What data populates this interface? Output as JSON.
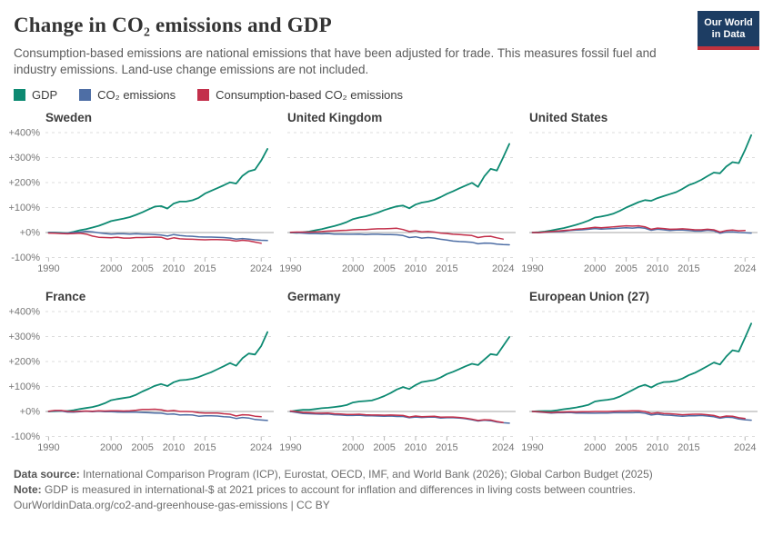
{
  "header": {
    "title": "Change in CO₂ emissions and GDP",
    "subtitle": "Consumption-based emissions are national emissions that have been adjusted for trade. This measures fossil fuel and industry emissions. Land-use change emissions are not included.",
    "logo": {
      "line1": "Our World",
      "line2": "in Data"
    }
  },
  "legend": [
    {
      "label": "GDP",
      "color": "#0d8a72"
    },
    {
      "label": "CO₂ emissions",
      "color": "#4e6ea5"
    },
    {
      "label": "Consumption-based CO₂ emissions",
      "color": "#c3304b"
    }
  ],
  "footer": {
    "data_source_label": "Data source:",
    "data_source_text": " International Comparison Program (ICP), Eurostat, OECD, IMF, and World Bank (2026); Global Carbon Budget (2025)",
    "note_label": "Note:",
    "note_text": " GDP is measured in international-$ at 2021 prices to account for inflation and differences in living costs between countries.",
    "license_line": "OurWorldinData.org/co2-and-greenhouse-gas-emissions | CC BY"
  },
  "chart_data": {
    "type": "line",
    "x": [
      1990,
      1991,
      1992,
      1993,
      1994,
      1995,
      1996,
      1997,
      1998,
      1999,
      2000,
      2001,
      2002,
      2003,
      2004,
      2005,
      2006,
      2007,
      2008,
      2009,
      2010,
      2011,
      2012,
      2013,
      2014,
      2015,
      2016,
      2017,
      2018,
      2019,
      2020,
      2021,
      2022,
      2023,
      2024,
      2025
    ],
    "xticks": [
      1990,
      2000,
      2005,
      2010,
      2015,
      2024
    ],
    "ylim": [
      -100,
      400
    ],
    "yticks": [
      400,
      300,
      200,
      100,
      0,
      -100
    ],
    "ytick_labels": [
      "+400%",
      "+300%",
      "+200%",
      "+100%",
      "+0%",
      "-100%"
    ],
    "grid": true,
    "legend_position": "top",
    "ylabel": "",
    "xlabel": "",
    "facets": [
      {
        "title": "Sweden",
        "series": [
          {
            "name": "GDP",
            "values": [
              0,
              0,
              -1,
              -2,
              3,
              9,
              14,
              20,
              27,
              36,
              46,
              51,
              56,
              62,
              71,
              81,
              93,
              104,
              106,
              96,
              116,
              124,
              124,
              129,
              139,
              156,
              167,
              178,
              189,
              201,
              196,
              227,
              245,
              252,
              288,
              335
            ]
          },
          {
            "name": "CO₂ emissions",
            "values": [
              0,
              -1,
              -2,
              -2,
              0,
              2,
              5,
              3,
              -1,
              -4,
              -6,
              -5,
              -5,
              -6,
              -5,
              -6,
              -7,
              -8,
              -10,
              -14,
              -8,
              -12,
              -14,
              -15,
              -17,
              -18,
              -18,
              -19,
              -20,
              -22,
              -26,
              -24,
              -26,
              -29,
              -31,
              -32
            ]
          },
          {
            "name": "Consumption-based CO₂ emissions",
            "values": [
              -2,
              -3,
              -4,
              -5,
              -4,
              -3,
              -6,
              -14,
              -19,
              -20,
              -21,
              -19,
              -22,
              -22,
              -20,
              -20,
              -19,
              -18,
              -19,
              -27,
              -21,
              -25,
              -26,
              -27,
              -28,
              -29,
              -28,
              -28,
              -29,
              -30,
              -34,
              -31,
              -33,
              -38,
              -43,
              null
            ]
          }
        ]
      },
      {
        "title": "United Kingdom",
        "series": [
          {
            "name": "GDP",
            "values": [
              0,
              -1,
              1,
              4,
              9,
              14,
              20,
              26,
              33,
              42,
              54,
              60,
              65,
              72,
              80,
              90,
              98,
              105,
              108,
              97,
              112,
              120,
              124,
              131,
              142,
              155,
              165,
              177,
              188,
              199,
              183,
              225,
              255,
              248,
              300,
              355
            ]
          },
          {
            "name": "CO₂ emissions",
            "values": [
              0,
              -1,
              -2,
              -4,
              -4,
              -5,
              -4,
              -6,
              -6,
              -7,
              -7,
              -6,
              -8,
              -7,
              -7,
              -8,
              -8,
              -9,
              -12,
              -20,
              -17,
              -22,
              -20,
              -22,
              -27,
              -30,
              -34,
              -36,
              -37,
              -39,
              -45,
              -42,
              -43,
              -46,
              -48,
              -49
            ]
          },
          {
            "name": "Consumption-based CO₂ emissions",
            "values": [
              1,
              2,
              2,
              2,
              3,
              4,
              6,
              7,
              8,
              9,
              11,
              12,
              12,
              14,
              15,
              15,
              16,
              17,
              12,
              4,
              7,
              3,
              4,
              2,
              -2,
              -4,
              -7,
              -8,
              -10,
              -12,
              -20,
              -16,
              -15,
              -21,
              -26,
              null
            ]
          }
        ]
      },
      {
        "title": "United States",
        "series": [
          {
            "name": "GDP",
            "values": [
              0,
              1,
              4,
              8,
              13,
              18,
              24,
              31,
              39,
              48,
              60,
              64,
              69,
              76,
              87,
              100,
              111,
              122,
              130,
              127,
              138,
              146,
              154,
              162,
              175,
              190,
              199,
              211,
              226,
              240,
              237,
              264,
              282,
              278,
              330,
              390
            ]
          },
          {
            "name": "CO₂ emissions",
            "values": [
              0,
              -1,
              1,
              3,
              4,
              5,
              8,
              10,
              11,
              13,
              16,
              14,
              15,
              16,
              18,
              19,
              18,
              20,
              17,
              9,
              13,
              11,
              8,
              10,
              10,
              8,
              6,
              6,
              9,
              7,
              -3,
              2,
              3,
              0,
              -1,
              -2
            ]
          },
          {
            "name": "Consumption-based CO₂ emissions",
            "values": [
              0,
              0,
              2,
              4,
              6,
              8,
              10,
              13,
              15,
              18,
              21,
              19,
              21,
              23,
              25,
              27,
              26,
              27,
              23,
              13,
              18,
              16,
              13,
              14,
              15,
              13,
              11,
              11,
              13,
              11,
              2,
              8,
              10,
              7,
              8,
              null
            ]
          }
        ]
      },
      {
        "title": "France",
        "series": [
          {
            "name": "GDP",
            "values": [
              0,
              1,
              2,
              2,
              5,
              10,
              14,
              18,
              24,
              33,
              45,
              50,
              54,
              58,
              67,
              80,
              91,
              103,
              110,
              102,
              117,
              125,
              127,
              131,
              138,
              148,
              157,
              169,
              181,
              194,
              183,
              213,
              232,
              228,
              262,
              318
            ]
          },
          {
            "name": "CO₂ emissions",
            "values": [
              0,
              3,
              2,
              -2,
              -3,
              -1,
              1,
              -1,
              1,
              -1,
              -1,
              -2,
              -3,
              -3,
              -3,
              -4,
              -5,
              -6,
              -7,
              -11,
              -10,
              -14,
              -13,
              -14,
              -19,
              -17,
              -17,
              -18,
              -21,
              -22,
              -28,
              -24,
              -26,
              -32,
              -34,
              -36
            ]
          },
          {
            "name": "Consumption-based CO₂ emissions",
            "values": [
              1,
              4,
              4,
              1,
              0,
              1,
              2,
              1,
              3,
              2,
              3,
              3,
              2,
              3,
              5,
              8,
              8,
              9,
              7,
              2,
              4,
              0,
              0,
              -1,
              -5,
              -6,
              -6,
              -6,
              -9,
              -11,
              -18,
              -13,
              -14,
              -19,
              -21,
              null
            ]
          }
        ]
      },
      {
        "title": "Germany",
        "series": [
          {
            "name": "GDP",
            "values": [
              0,
              4,
              7,
              7,
              10,
              13,
              15,
              18,
              21,
              26,
              36,
              40,
              42,
              44,
              52,
              62,
              74,
              88,
              98,
              90,
              106,
              118,
              122,
              126,
              136,
              150,
              159,
              170,
              181,
              191,
              186,
              208,
              230,
              226,
              262,
              298
            ]
          },
          {
            "name": "CO₂ emissions",
            "values": [
              0,
              -4,
              -8,
              -9,
              -10,
              -11,
              -10,
              -13,
              -14,
              -16,
              -16,
              -15,
              -17,
              -17,
              -18,
              -19,
              -18,
              -20,
              -20,
              -25,
              -22,
              -24,
              -23,
              -22,
              -26,
              -25,
              -25,
              -26,
              -29,
              -33,
              -38,
              -35,
              -37,
              -42,
              -45,
              -47
            ]
          },
          {
            "name": "Consumption-based CO₂ emissions",
            "values": [
              2,
              -1,
              -4,
              -5,
              -7,
              -7,
              -6,
              -9,
              -10,
              -12,
              -12,
              -11,
              -13,
              -14,
              -14,
              -15,
              -14,
              -15,
              -16,
              -22,
              -18,
              -21,
              -20,
              -19,
              -23,
              -22,
              -22,
              -24,
              -27,
              -31,
              -36,
              -33,
              -34,
              -40,
              -44,
              null
            ]
          }
        ]
      },
      {
        "title": "European Union (27)",
        "series": [
          {
            "name": "GDP",
            "values": [
              0,
              1,
              2,
              2,
              5,
              9,
              12,
              16,
              21,
              27,
              40,
              44,
              47,
              51,
              60,
              73,
              86,
              99,
              107,
              96,
              110,
              118,
              119,
              123,
              132,
              145,
              155,
              168,
              182,
              196,
              188,
              220,
              245,
              240,
              295,
              352
            ]
          },
          {
            "name": "CO₂ emissions",
            "values": [
              0,
              -2,
              -4,
              -6,
              -5,
              -5,
              -4,
              -6,
              -6,
              -7,
              -7,
              -6,
              -6,
              -5,
              -5,
              -5,
              -5,
              -4,
              -7,
              -14,
              -11,
              -14,
              -15,
              -17,
              -19,
              -17,
              -17,
              -16,
              -18,
              -21,
              -27,
              -23,
              -24,
              -30,
              -33,
              -35
            ]
          },
          {
            "name": "Consumption-based CO₂ emissions",
            "values": [
              0,
              -1,
              -3,
              -4,
              -3,
              -2,
              -1,
              -2,
              -1,
              -1,
              0,
              0,
              0,
              1,
              2,
              2,
              3,
              3,
              0,
              -8,
              -5,
              -8,
              -9,
              -11,
              -13,
              -12,
              -11,
              -11,
              -13,
              -16,
              -23,
              -18,
              -19,
              -25,
              -28,
              null
            ]
          }
        ]
      }
    ]
  }
}
